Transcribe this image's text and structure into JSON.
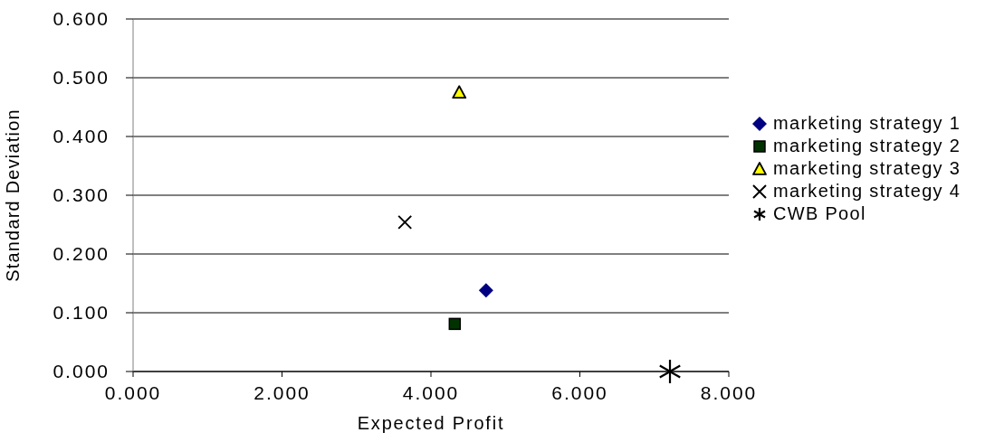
{
  "chart_data": {
    "type": "scatter",
    "xlabel": "Expected Profit",
    "ylabel": "Standard Deviation",
    "xlim": [
      0,
      8
    ],
    "xticks": [
      {
        "value": 0,
        "label": "0.000"
      },
      {
        "value": 2,
        "label": "2.000"
      },
      {
        "value": 4,
        "label": "4.000"
      },
      {
        "value": 6,
        "label": "6.000"
      },
      {
        "value": 8,
        "label": "8.000"
      }
    ],
    "ylim": [
      0,
      0.6
    ],
    "yticks": [
      {
        "value": 0,
        "label": "0.000"
      },
      {
        "value": 0.1,
        "label": "0.100"
      },
      {
        "value": 0.2,
        "label": "0.200"
      },
      {
        "value": 0.3,
        "label": "0.300"
      },
      {
        "value": 0.4,
        "label": "0.400"
      },
      {
        "value": 0.5,
        "label": "0.500"
      },
      {
        "value": 0.6,
        "label": "0.600"
      }
    ],
    "grid": "y",
    "legend": "right",
    "series": [
      {
        "name": "marketing strategy 1",
        "color": "#000080",
        "marker": "diamond",
        "x": [
          4.74
        ],
        "values": [
          0.138
        ]
      },
      {
        "name": "marketing strategy 2",
        "color": "#003300",
        "marker": "square",
        "x": [
          4.32
        ],
        "values": [
          0.081
        ]
      },
      {
        "name": "marketing strategy 3",
        "color": "#ffff00",
        "marker": "triangle",
        "x": [
          4.38
        ],
        "values": [
          0.475
        ]
      },
      {
        "name": "marketing strategy 4",
        "color": "#000000",
        "marker": "cross",
        "x": [
          3.65
        ],
        "values": [
          0.254
        ]
      },
      {
        "name": "CWB Pool",
        "color": "#000000",
        "marker": "star",
        "x": [
          7.21
        ],
        "values": [
          0
        ]
      }
    ]
  }
}
